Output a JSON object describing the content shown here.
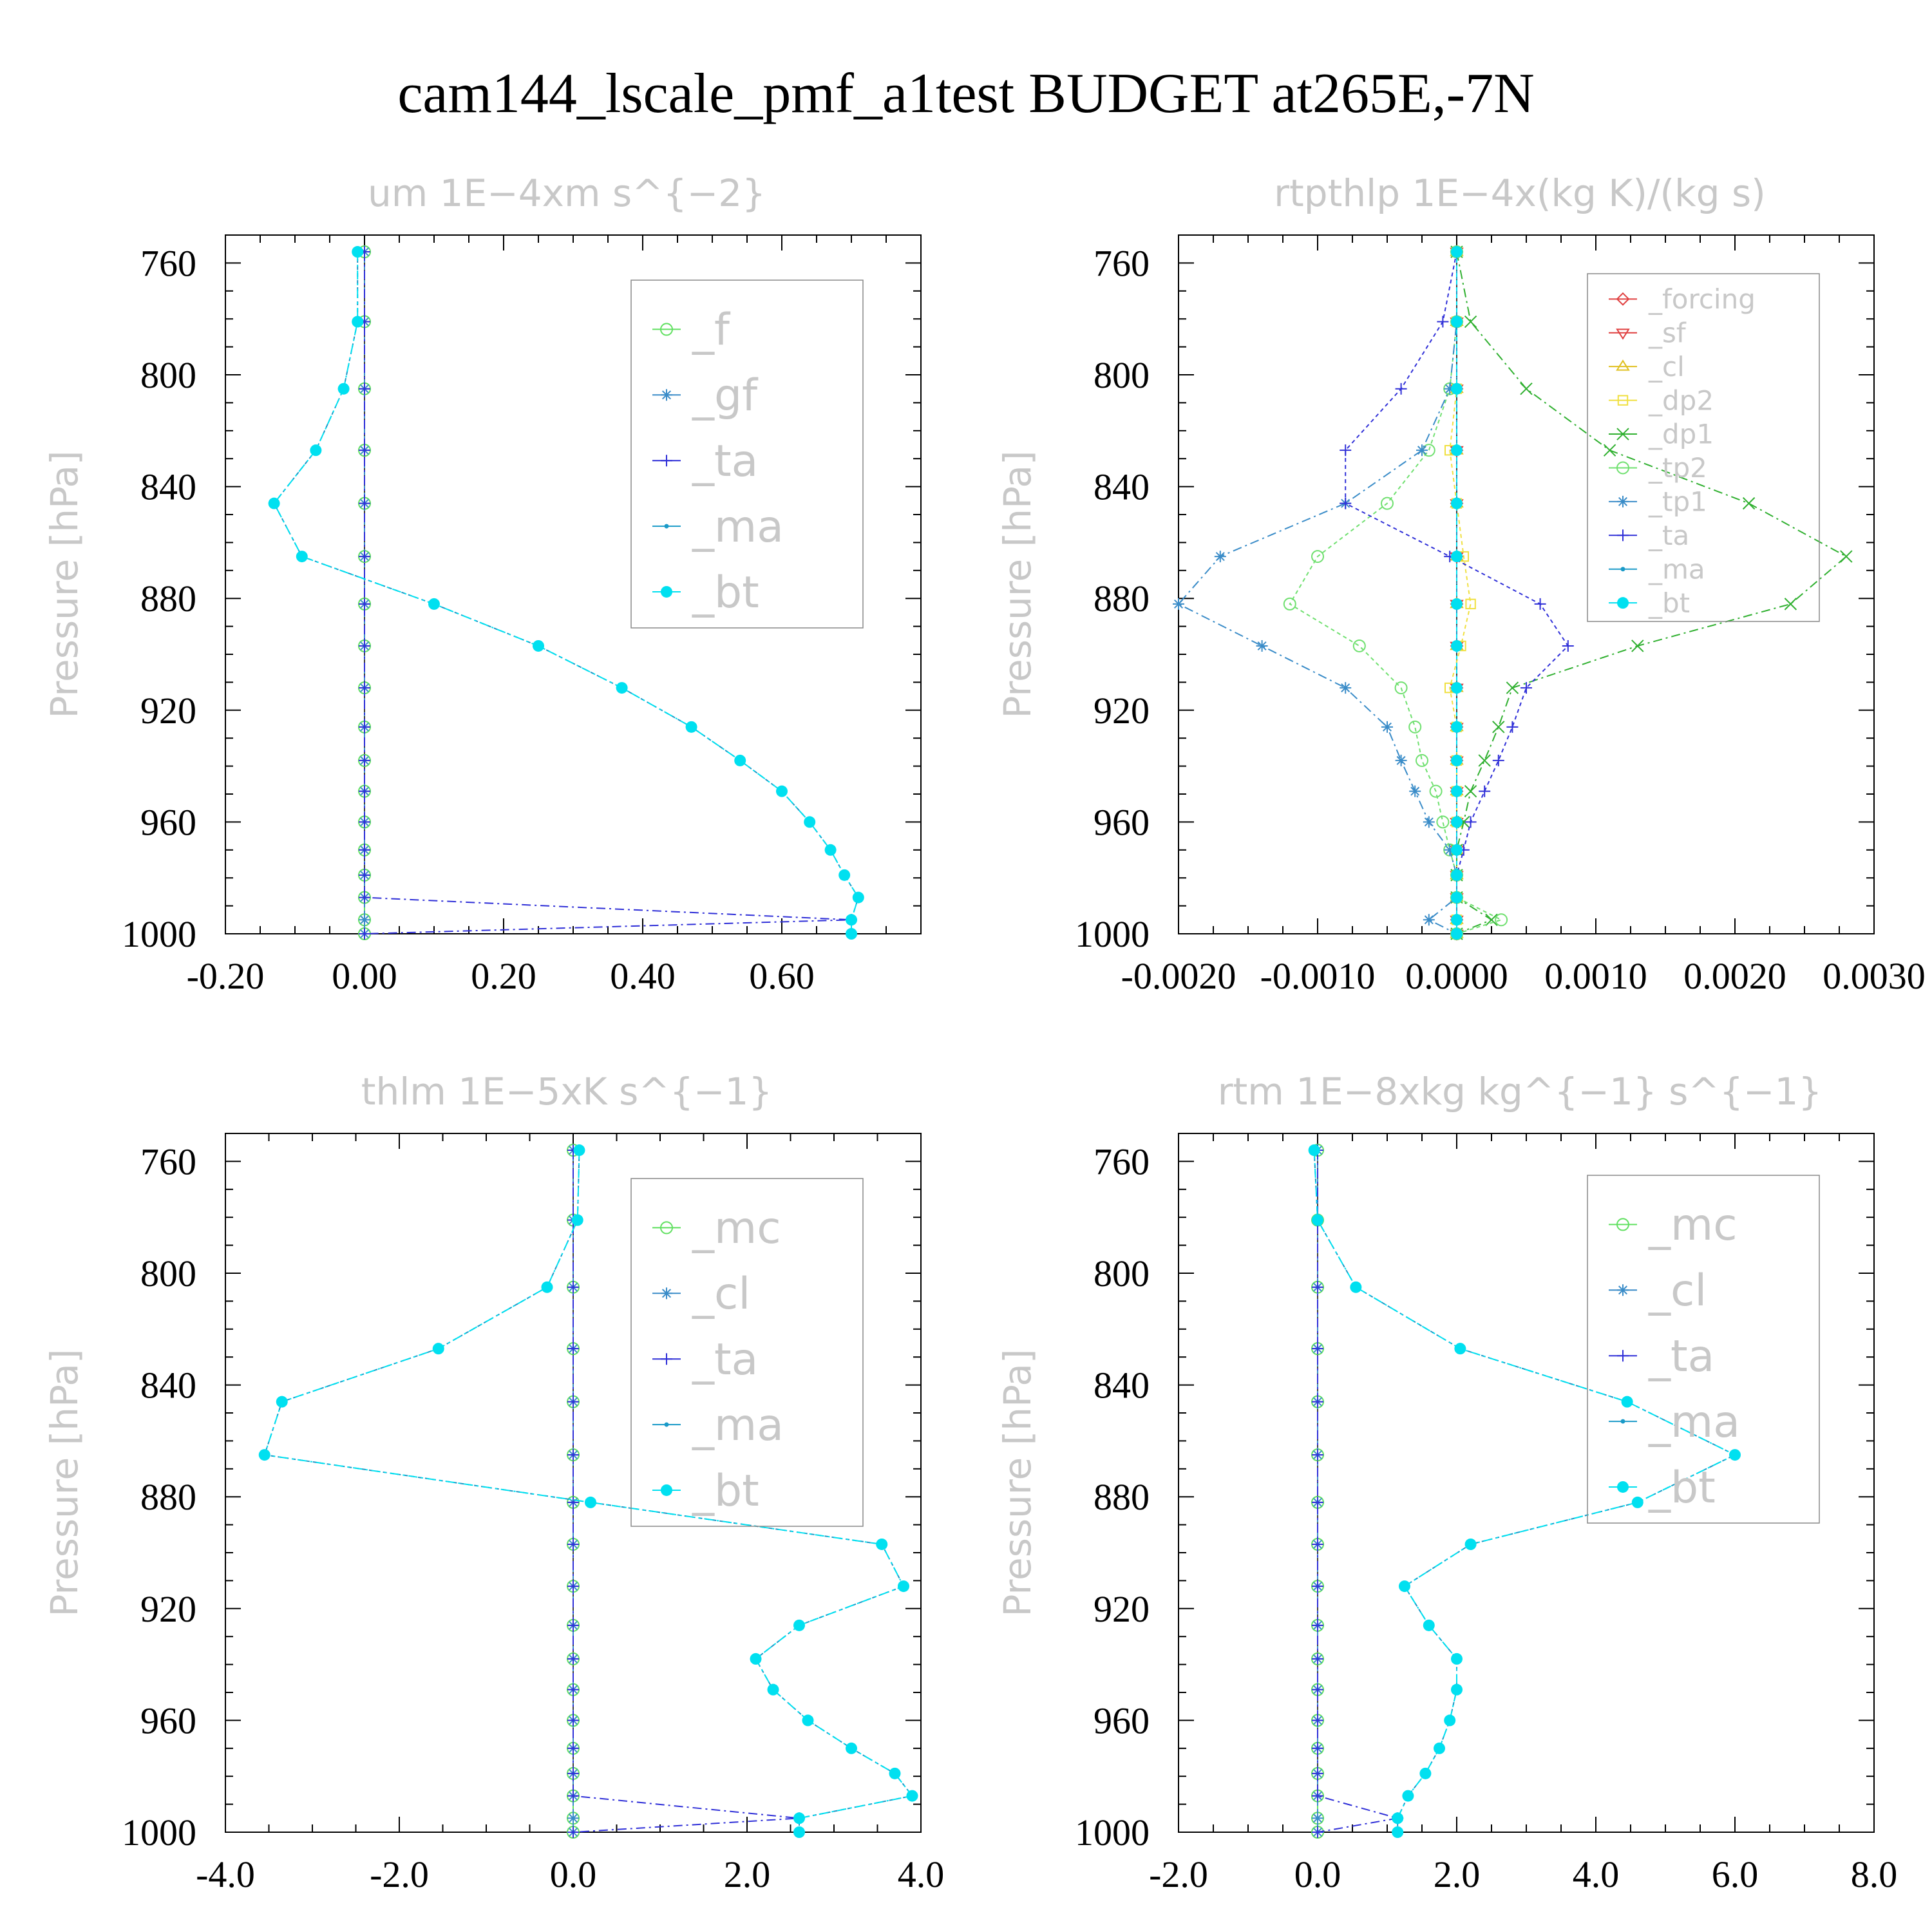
{
  "title": "cam144_lscale_pmf_a1test  BUDGET at265E,-7N",
  "chart_data": [
    {
      "type": "line",
      "title": "um   1E−4xm s^{−2}",
      "ylabel": "Pressure [hPa]",
      "ylim": [
        750,
        1000
      ],
      "yticks": [
        760,
        800,
        840,
        880,
        920,
        960,
        1000
      ],
      "xlim": [
        -0.2,
        0.8
      ],
      "xticks": [
        -0.2,
        0,
        0.2,
        0.4,
        0.6
      ],
      "xtick_labels": [
        "-0.20",
        "0.00",
        "0.20",
        "0.40",
        "0.60"
      ],
      "y": [
        756,
        781,
        805,
        827,
        846,
        865,
        882,
        897,
        912,
        926,
        938,
        949,
        960,
        970,
        979,
        987,
        995,
        1000
      ],
      "legend_fontsize": 68,
      "series": [
        {
          "name": "_f",
          "color": "#60e060",
          "marker": "circle",
          "values": [
            0,
            0,
            0,
            0,
            0,
            0,
            0,
            0,
            0,
            0,
            0,
            0,
            0,
            0,
            0,
            0,
            0,
            0
          ]
        },
        {
          "name": "_gf",
          "color": "#3a8cc8",
          "marker": "star",
          "values": [
            0,
            0,
            0,
            0,
            0,
            0,
            0,
            0,
            0,
            0,
            0,
            0,
            0,
            0,
            0,
            0,
            0,
            0
          ]
        },
        {
          "name": "_ta",
          "color": "#3030d8",
          "marker": "plus",
          "values": [
            0,
            0,
            0,
            0,
            0,
            0,
            0,
            0,
            0,
            0,
            0,
            0,
            0,
            0,
            0,
            0,
            0.7,
            0
          ]
        },
        {
          "name": "_ma",
          "color": "#1a9ac8",
          "marker": "dot",
          "values": [
            -0.01,
            -0.01,
            -0.03,
            -0.07,
            -0.13,
            -0.09,
            0.1,
            0.25,
            0.37,
            0.47,
            0.54,
            0.6,
            0.64,
            0.67,
            0.69,
            0.71,
            0.7,
            0.7
          ]
        },
        {
          "name": "_bt",
          "color": "#00e0f0",
          "marker": "bigdot",
          "values": [
            -0.01,
            -0.01,
            -0.03,
            -0.07,
            -0.13,
            -0.09,
            0.1,
            0.25,
            0.37,
            0.47,
            0.54,
            0.6,
            0.64,
            0.67,
            0.69,
            0.71,
            0.7,
            0.7
          ]
        }
      ]
    },
    {
      "type": "line",
      "title": "rtpthlp   1E−4x(kg K)/(kg s)",
      "ylabel": "Pressure [hPa]",
      "ylim": [
        750,
        1000
      ],
      "yticks": [
        760,
        800,
        840,
        880,
        920,
        960,
        1000
      ],
      "xlim": [
        -0.002,
        0.003
      ],
      "xticks": [
        -0.002,
        -0.001,
        0,
        0.001,
        0.002,
        0.003
      ],
      "xtick_labels": [
        "-0.0020",
        "-0.0010",
        "0.0000",
        "0.0010",
        "0.0020",
        "0.0030"
      ],
      "y": [
        756,
        781,
        805,
        827,
        846,
        865,
        882,
        897,
        912,
        926,
        938,
        949,
        960,
        970,
        979,
        987,
        995,
        1000
      ],
      "legend_fontsize": 42,
      "series": [
        {
          "name": "_forcing",
          "color": "#e04040",
          "marker": "diamond",
          "values": [
            0,
            0,
            0,
            0,
            0,
            0,
            0,
            0,
            0,
            0,
            0,
            0,
            0,
            0,
            0,
            0,
            0,
            0
          ]
        },
        {
          "name": "_sf",
          "color": "#e04040",
          "marker": "tri-down",
          "values": [
            0,
            0,
            0,
            0,
            0,
            0,
            0,
            0,
            0,
            0,
            0,
            0,
            0,
            0,
            0,
            0,
            0,
            0
          ]
        },
        {
          "name": "_cl",
          "color": "#e0c020",
          "marker": "tri-up",
          "values": [
            0,
            0,
            0,
            0,
            0,
            0,
            0,
            0,
            0,
            0,
            0,
            0,
            0,
            0,
            0,
            0,
            0,
            0
          ]
        },
        {
          "name": "_dp2",
          "color": "#f0e040",
          "marker": "square",
          "values": [
            0,
            0,
            0,
            -5e-05,
            0,
            5e-05,
            0.0001,
            3e-05,
            -5e-05,
            0,
            0,
            0,
            0,
            0,
            0,
            0,
            0,
            0
          ]
        },
        {
          "name": "_dp1",
          "color": "#30b030",
          "marker": "cross",
          "values": [
            0,
            0.0001,
            0.0005,
            0.0011,
            0.0021,
            0.0028,
            0.0024,
            0.0013,
            0.0004,
            0.0003,
            0.0002,
            0.0001,
            5e-05,
            0,
            0,
            0,
            0.00025,
            0
          ]
        },
        {
          "name": "_tp2",
          "color": "#70e070",
          "marker": "circle",
          "values": [
            0,
            0,
            -5e-05,
            -0.0002,
            -0.0005,
            -0.001,
            -0.0012,
            -0.0007,
            -0.0004,
            -0.0003,
            -0.00025,
            -0.00015,
            -0.0001,
            -5e-05,
            0,
            0,
            0.00032,
            0
          ]
        },
        {
          "name": "_tp1",
          "color": "#3a8cc8",
          "marker": "star",
          "values": [
            0,
            0,
            -5e-05,
            -0.00025,
            -0.0008,
            -0.0017,
            -0.002,
            -0.0014,
            -0.0008,
            -0.0005,
            -0.0004,
            -0.0003,
            -0.0002,
            -5e-05,
            0,
            0,
            -0.0002,
            0
          ]
        },
        {
          "name": "_ta",
          "color": "#3030d8",
          "marker": "plus",
          "values": [
            0,
            -0.0001,
            -0.0004,
            -0.0008,
            -0.0008,
            -5e-05,
            0.0006,
            0.0008,
            0.0005,
            0.0004,
            0.0003,
            0.0002,
            0.0001,
            5e-05,
            0,
            0,
            0,
            0
          ]
        },
        {
          "name": "_ma",
          "color": "#1a9ac8",
          "marker": "dot",
          "values": [
            0,
            0,
            0,
            0,
            0,
            0,
            0,
            0,
            0,
            0,
            0,
            0,
            0,
            0,
            0,
            0,
            0,
            0
          ]
        },
        {
          "name": "_bt",
          "color": "#00e0f0",
          "marker": "bigdot",
          "values": [
            0,
            0,
            0,
            0,
            0,
            0,
            0,
            0,
            0,
            0,
            0,
            0,
            0,
            0,
            0,
            0,
            0,
            0
          ]
        }
      ]
    },
    {
      "type": "line",
      "title": "thlm   1E−5xK s^{−1}",
      "ylabel": "Pressure [hPa]",
      "ylim": [
        750,
        1000
      ],
      "yticks": [
        760,
        800,
        840,
        880,
        920,
        960,
        1000
      ],
      "xlim": [
        -4,
        4
      ],
      "xticks": [
        -4,
        -2,
        0,
        2,
        4
      ],
      "xtick_labels": [
        "-4.0",
        "-2.0",
        "0.0",
        "2.0",
        "4.0"
      ],
      "y": [
        756,
        781,
        805,
        827,
        846,
        865,
        882,
        897,
        912,
        926,
        938,
        949,
        960,
        970,
        979,
        987,
        995,
        1000
      ],
      "legend_fontsize": 68,
      "series": [
        {
          "name": "_mc",
          "color": "#60e060",
          "marker": "circle",
          "values": [
            0,
            0,
            0,
            0,
            0,
            0,
            0,
            0,
            0,
            0,
            0,
            0,
            0,
            0,
            0,
            0,
            0,
            0
          ]
        },
        {
          "name": "_cl",
          "color": "#3a8cc8",
          "marker": "star",
          "values": [
            0,
            0,
            0,
            0,
            0,
            0,
            0,
            0,
            0,
            0,
            0,
            0,
            0,
            0,
            0,
            0,
            0,
            0
          ]
        },
        {
          "name": "_ta",
          "color": "#3030d8",
          "marker": "plus",
          "values": [
            0,
            0,
            0,
            0,
            0,
            0,
            0,
            0,
            0,
            0,
            0,
            0,
            0,
            0,
            0,
            0,
            2.6,
            0
          ]
        },
        {
          "name": "_ma",
          "color": "#1a9ac8",
          "marker": "dot",
          "values": [
            0.07,
            0.05,
            -0.3,
            -1.55,
            -3.35,
            -3.55,
            0.2,
            3.55,
            3.8,
            2.6,
            2.1,
            2.3,
            2.7,
            3.2,
            3.7,
            3.9,
            2.6,
            2.6
          ]
        },
        {
          "name": "_bt",
          "color": "#00e0f0",
          "marker": "bigdot",
          "values": [
            0.07,
            0.05,
            -0.3,
            -1.55,
            -3.35,
            -3.55,
            0.2,
            3.55,
            3.8,
            2.6,
            2.1,
            2.3,
            2.7,
            3.2,
            3.7,
            3.9,
            2.6,
            2.6
          ]
        }
      ]
    },
    {
      "type": "line",
      "title": "rtm   1E−8xkg kg^{−1} s^{−1}",
      "ylabel": "Pressure [hPa]",
      "ylim": [
        750,
        1000
      ],
      "yticks": [
        760,
        800,
        840,
        880,
        920,
        960,
        1000
      ],
      "xlim": [
        -2,
        8
      ],
      "xticks": [
        -2,
        0,
        2,
        4,
        6,
        8
      ],
      "xtick_labels": [
        "-2.0",
        "0.0",
        "2.0",
        "4.0",
        "6.0",
        "8.0"
      ],
      "y": [
        756,
        781,
        805,
        827,
        846,
        865,
        882,
        897,
        912,
        926,
        938,
        949,
        960,
        970,
        979,
        987,
        995,
        1000
      ],
      "legend_fontsize": 68,
      "series": [
        {
          "name": "_mc",
          "color": "#60e060",
          "marker": "circle",
          "values": [
            0,
            0,
            0,
            0,
            0,
            0,
            0,
            0,
            0,
            0,
            0,
            0,
            0,
            0,
            0,
            0,
            0,
            0
          ]
        },
        {
          "name": "_cl",
          "color": "#3a8cc8",
          "marker": "star",
          "values": [
            0,
            0,
            0,
            0,
            0,
            0,
            0,
            0,
            0,
            0,
            0,
            0,
            0,
            0,
            0,
            0,
            0,
            0
          ]
        },
        {
          "name": "_ta",
          "color": "#3030d8",
          "marker": "plus",
          "values": [
            0,
            0,
            0,
            0,
            0,
            0,
            0,
            0,
            0,
            0,
            0,
            0,
            0,
            0,
            0,
            0,
            1.15,
            0
          ]
        },
        {
          "name": "_ma",
          "color": "#1a9ac8",
          "marker": "dot",
          "values": [
            -0.05,
            0,
            0.55,
            2.05,
            4.45,
            6.0,
            4.6,
            2.2,
            1.25,
            1.6,
            2.0,
            2.0,
            1.9,
            1.75,
            1.55,
            1.3,
            1.15,
            1.15
          ]
        },
        {
          "name": "_bt",
          "color": "#00e0f0",
          "marker": "bigdot",
          "values": [
            -0.05,
            0,
            0.55,
            2.05,
            4.45,
            6.0,
            4.6,
            2.2,
            1.25,
            1.6,
            2.0,
            2.0,
            1.9,
            1.75,
            1.55,
            1.3,
            1.15,
            1.15
          ]
        }
      ]
    }
  ]
}
